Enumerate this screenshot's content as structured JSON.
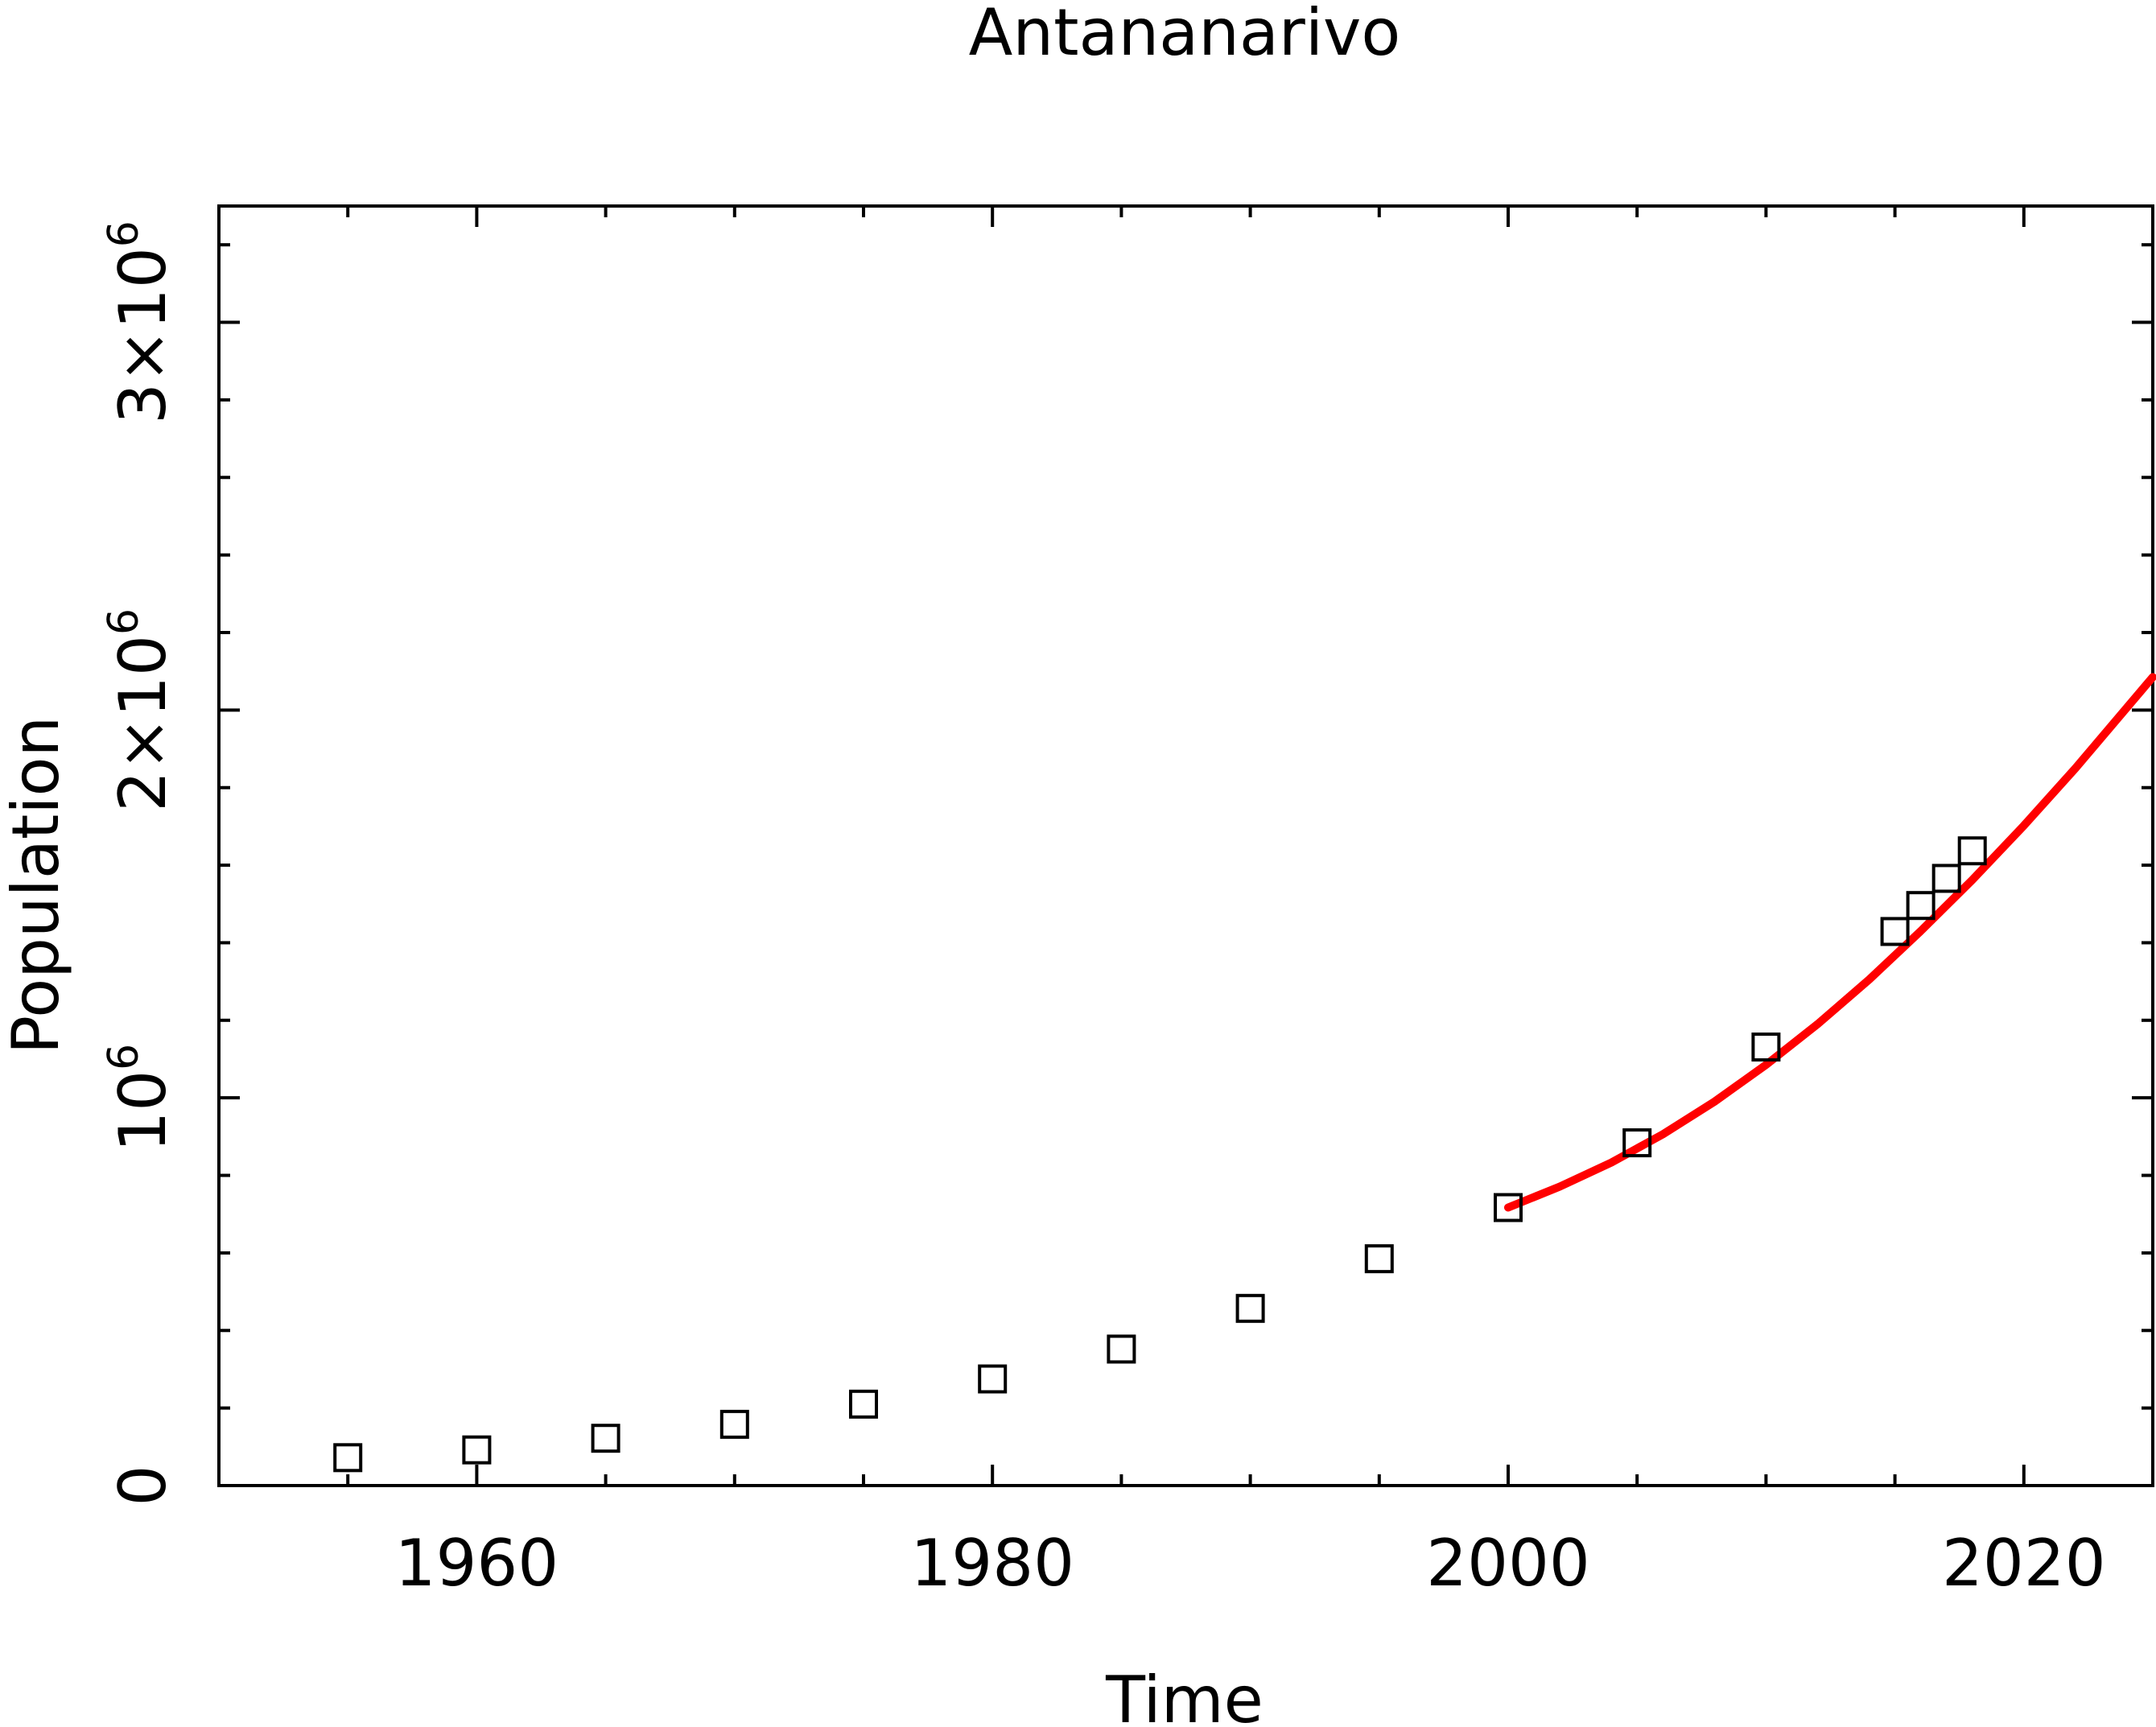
{
  "chart_data": {
    "type": "scatter",
    "title": "Antananarivo",
    "xlabel": "Time",
    "ylabel": "Population",
    "xlim": [
      1950,
      2025
    ],
    "ylim": [
      0,
      3000000
    ],
    "x_ticks": [
      {
        "value": 1960,
        "label": "1960"
      },
      {
        "value": 1980,
        "label": "1980"
      },
      {
        "value": 2000,
        "label": "2000"
      },
      {
        "value": 2020,
        "label": "2020"
      }
    ],
    "y_ticks": [
      {
        "value": 0,
        "base": "0",
        "exp": ""
      },
      {
        "value": 1000000,
        "base": "10",
        "exp": "6"
      },
      {
        "value": 2000000,
        "base": "2×10",
        "exp": "6"
      },
      {
        "value": 3000000,
        "base": "3×10",
        "exp": "6"
      }
    ],
    "x_minor_step": 5,
    "y_minor_step": 200000,
    "grid": false,
    "legend": "none",
    "series": [
      {
        "type": "scatter",
        "marker": "open-square",
        "color": "#000000",
        "x": [
          1955,
          1960,
          1965,
          1970,
          1975,
          1980,
          1985,
          1990,
          1995,
          2000,
          2005,
          2010,
          2015,
          2016,
          2017,
          2018
        ],
        "y": [
          72000,
          92000,
          122000,
          158000,
          210000,
          275000,
          352000,
          457000,
          585000,
          717000,
          884000,
          1131000,
          1429000,
          1496000,
          1566000,
          1637000
        ]
      },
      {
        "type": "line",
        "color": "#ff0000",
        "x": [
          2000,
          2002,
          2004,
          2006,
          2008,
          2010,
          2012,
          2014,
          2016,
          2018,
          2020,
          2022,
          2025
        ],
        "y": [
          717000,
          771000,
          833000,
          906000,
          990000,
          1085000,
          1190000,
          1305000,
          1430000,
          1562000,
          1702000,
          1850000,
          2085000
        ]
      }
    ]
  }
}
